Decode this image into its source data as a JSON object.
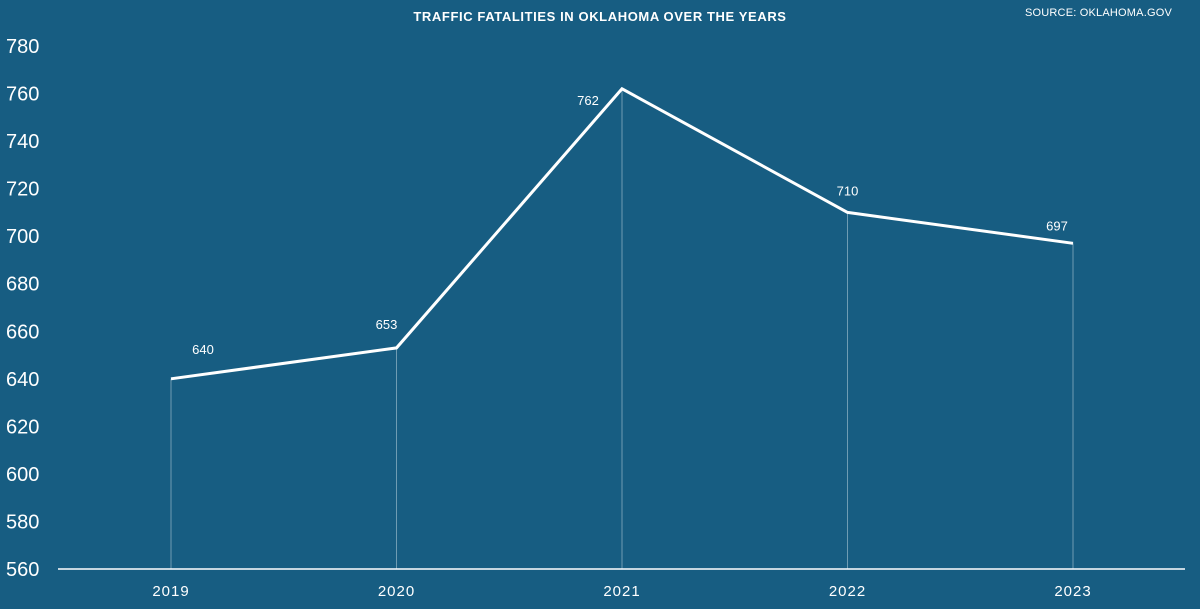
{
  "chart_data": {
    "type": "line",
    "title": "TRAFFIC FATALITIES IN OKLAHOMA OVER THE YEARS",
    "source": "SOURCE: OKLAHOMA.GOV",
    "categories": [
      "2019",
      "2020",
      "2021",
      "2022",
      "2023"
    ],
    "values": [
      640,
      653,
      762,
      710,
      697
    ],
    "data_labels": [
      "640",
      "653",
      "762",
      "710",
      "697"
    ],
    "ylim": [
      560,
      780
    ],
    "y_ticks": [
      560,
      580,
      600,
      620,
      640,
      660,
      680,
      700,
      720,
      740,
      760,
      780
    ],
    "y_tick_labels": [
      "560",
      "580",
      "600",
      "620",
      "640",
      "660",
      "680",
      "700",
      "720",
      "740",
      "760",
      "780"
    ],
    "grid": false,
    "drop_lines": true,
    "legend": "none"
  },
  "colors": {
    "background": "#175d82",
    "line": "#ffffff",
    "text": "#ffffff",
    "axis": "#ffffff",
    "drop_line": "#b8cfdc"
  }
}
